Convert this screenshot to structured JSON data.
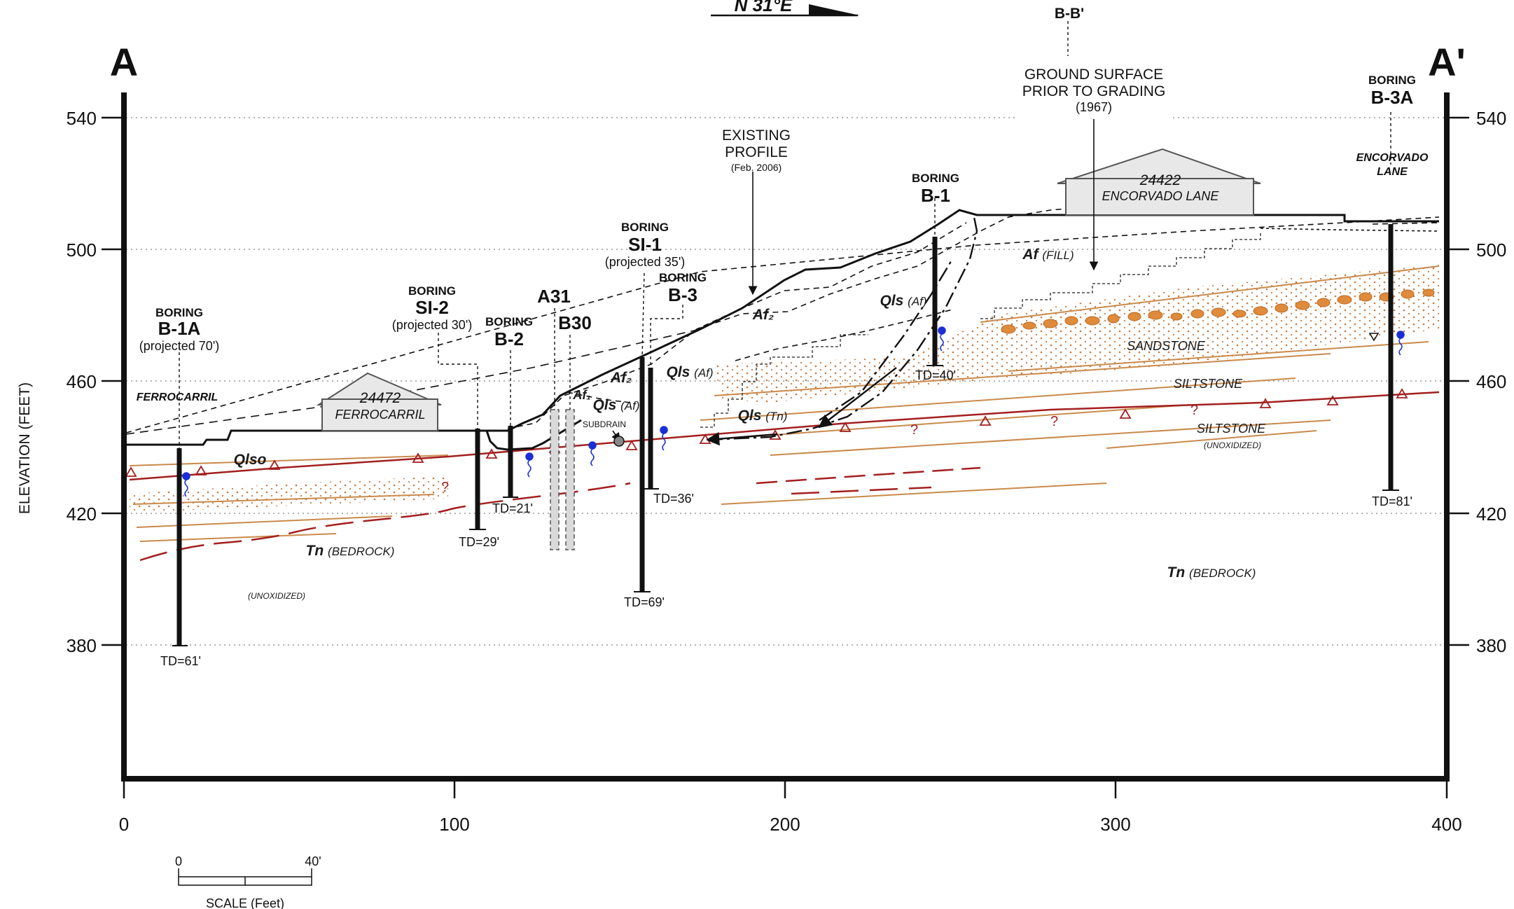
{
  "section": {
    "left_label": "A",
    "right_label": "A'",
    "bearing": "N 31°E",
    "cross_section_ref": "B-B'"
  },
  "axes": {
    "y_label": "ELEVATION (FEET)",
    "y_ticks": [
      "540",
      "500",
      "460",
      "420",
      "380"
    ],
    "x_ticks": [
      "0",
      "100",
      "200",
      "300",
      "400"
    ]
  },
  "scale_bar": {
    "start": "0",
    "end": "40'",
    "caption": "SCALE (Feet)"
  },
  "annotations": {
    "existing_profile": [
      "EXISTING",
      "PROFILE",
      "(Feb. 2006)"
    ],
    "ground_surface": [
      "GROUND SURFACE",
      "PRIOR TO GRADING",
      "(1967)"
    ],
    "subdrain": "SUBDRAIN"
  },
  "houses": [
    {
      "number": "24472",
      "street": "FERROCARRIL"
    },
    {
      "number": "24422",
      "street": "ENCORVADO LANE"
    }
  ],
  "streets": {
    "left": "FERROCARRIL",
    "right_1": "ENCORVADO",
    "right_2": "LANE"
  },
  "borings": {
    "b1a": {
      "kind": "BORING",
      "id": "B-1A",
      "note": "(projected 70')",
      "td": "TD=61'"
    },
    "si2": {
      "kind": "BORING",
      "id": "SI-2",
      "note": "(projected 30')",
      "td": "TD=29'"
    },
    "b2": {
      "kind": "BORING",
      "id": "B-2",
      "td": "TD=21'"
    },
    "a31": {
      "id": "A31"
    },
    "b30": {
      "id": "B30"
    },
    "si1": {
      "kind": "BORING",
      "id": "SI-1",
      "note": "(projected 35')",
      "td": "TD=69'"
    },
    "b3": {
      "kind": "BORING",
      "id": "B-3",
      "td": "TD=36'"
    },
    "b1": {
      "kind": "BORING",
      "id": "B-1",
      "td": "TD=40'"
    },
    "b3a": {
      "kind": "BORING",
      "id": "B-3A",
      "td": "TD=81'"
    }
  },
  "units": {
    "af_fill_sym": "Af",
    "af_fill_txt": "(FILL)",
    "af2": "Af₂",
    "af2_lower": "Af₂",
    "af1": "Af₁",
    "qls_af_upper_sym": "Qls",
    "qls_af_upper_txt": "(Af)",
    "qls_af_mid_sym": "Qls",
    "qls_af_mid_txt": "(Af)",
    "qls_af_low_sym": "Qls",
    "qls_af_low_txt": "(Af)",
    "qls_tn_sym": "Qls",
    "qls_tn_txt": "(Tn)",
    "qlso": "Qlso",
    "sandstone": "SANDSTONE",
    "siltstone_1": "SILTSTONE",
    "siltstone_2": "SILTSTONE",
    "unoxidized_right": "(UNOXIDIZED)",
    "unoxidized_left": "(UNOXIDIZED)",
    "tn_left_sym": "Tn",
    "tn_left_txt": "(BEDROCK)",
    "tn_right_sym": "Tn",
    "tn_right_txt": "(BEDROCK)"
  },
  "colors": {
    "frame": "#111111",
    "contact_red": "#a31f1f",
    "bedding_orange": "#c98a4b",
    "cobble_fill": "#e08a3c",
    "groundwater_blue": "#1a2fd6",
    "house_fill": "#e8e8e8"
  }
}
